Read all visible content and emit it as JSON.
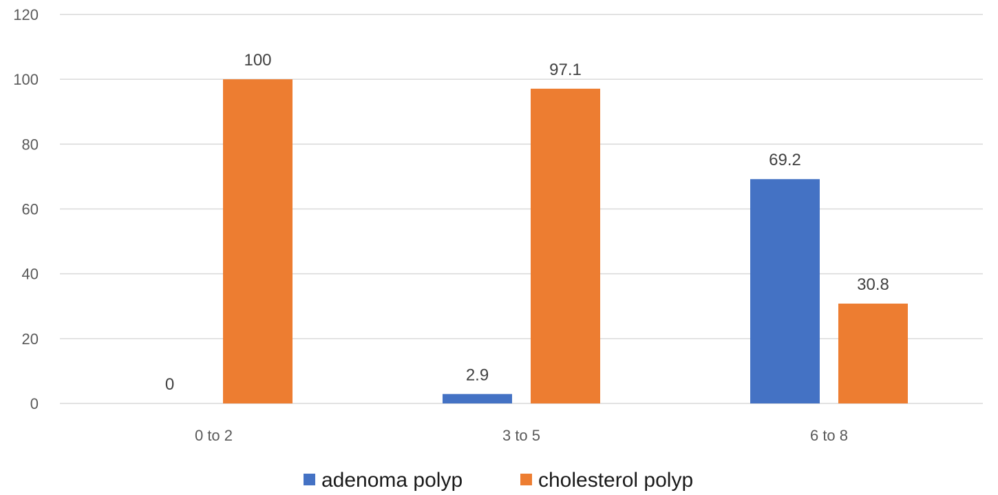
{
  "chart_data": {
    "type": "bar",
    "categories": [
      "0 to 2",
      "3 to 5",
      "6 to 8"
    ],
    "series": [
      {
        "name": "adenoma polyp",
        "color": "#4472C4",
        "values": [
          0,
          2.9,
          69.2
        ],
        "labels": [
          "0",
          "2.9",
          "69.2"
        ]
      },
      {
        "name": "cholesterol polyp",
        "color": "#ED7D31",
        "values": [
          100,
          97.1,
          30.8
        ],
        "labels": [
          "100",
          "97.1",
          "30.8"
        ]
      }
    ],
    "yticks": [
      "0",
      "20",
      "40",
      "60",
      "80",
      "100",
      "120"
    ],
    "ylim": [
      0,
      120
    ],
    "grid": true,
    "legend_position": "bottom"
  }
}
